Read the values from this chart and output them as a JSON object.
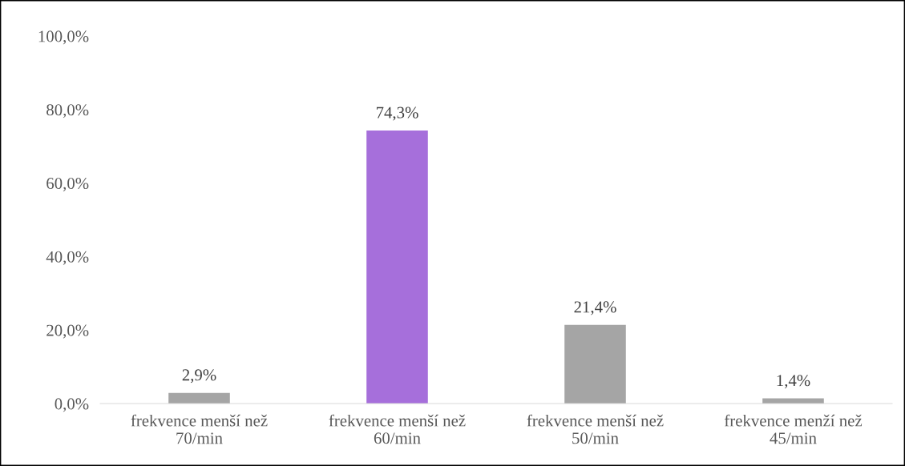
{
  "chart_data": {
    "type": "bar",
    "categories": [
      "frekvence menší než\n70/min",
      "frekvence menší než\n60/min",
      "frekvence menší než\n50/min",
      "frekvence menží než\n45/min"
    ],
    "values": [
      2.9,
      74.3,
      21.4,
      1.4
    ],
    "colors": [
      "#a5a5a5",
      "#a66fdb",
      "#a5a5a5",
      "#a5a5a5"
    ],
    "value_labels": [
      "2,9%",
      "74,3%",
      "21,4%",
      "1,4%"
    ],
    "ylim": [
      0,
      100
    ],
    "yticks": [
      {
        "value": 0,
        "label": "0,0%"
      },
      {
        "value": 20,
        "label": "20,0%"
      },
      {
        "value": 40,
        "label": "40,0%"
      },
      {
        "value": 60,
        "label": "60,0%"
      },
      {
        "value": 80,
        "label": "80,0%"
      },
      {
        "value": 100,
        "label": "100,0%"
      }
    ],
    "grid": false,
    "legend": false
  }
}
